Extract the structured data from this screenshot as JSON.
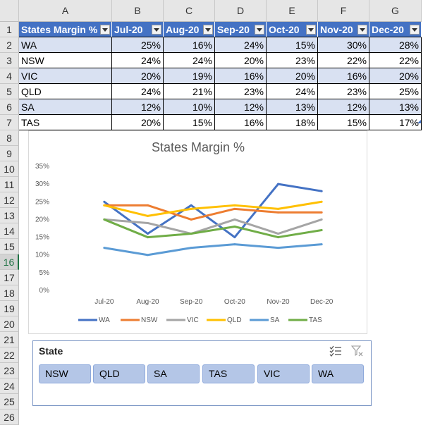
{
  "columns": [
    "A",
    "B",
    "C",
    "D",
    "E",
    "F",
    "G"
  ],
  "rows": [
    "1",
    "2",
    "3",
    "4",
    "5",
    "6",
    "7",
    "8",
    "9",
    "10",
    "11",
    "12",
    "13",
    "14",
    "15",
    "16",
    "17",
    "18",
    "19",
    "20",
    "21",
    "22",
    "23",
    "24",
    "25",
    "26"
  ],
  "table": {
    "headers": [
      "States Margin %",
      "Jul-20",
      "Aug-20",
      "Sep-20",
      "Oct-20",
      "Nov-20",
      "Dec-20"
    ],
    "rows": [
      {
        "state": "WA",
        "values": [
          "25%",
          "16%",
          "24%",
          "15%",
          "30%",
          "28%"
        ]
      },
      {
        "state": "NSW",
        "values": [
          "24%",
          "24%",
          "20%",
          "23%",
          "22%",
          "22%"
        ]
      },
      {
        "state": "VIC",
        "values": [
          "20%",
          "19%",
          "16%",
          "20%",
          "16%",
          "20%"
        ]
      },
      {
        "state": "QLD",
        "values": [
          "24%",
          "21%",
          "23%",
          "24%",
          "23%",
          "25%"
        ]
      },
      {
        "state": "SA",
        "values": [
          "12%",
          "10%",
          "12%",
          "13%",
          "12%",
          "13%"
        ]
      },
      {
        "state": "TAS",
        "values": [
          "20%",
          "15%",
          "16%",
          "18%",
          "15%",
          "17%"
        ]
      }
    ]
  },
  "chart_data": {
    "type": "line",
    "title": "States Margin %",
    "categories": [
      "Jul-20",
      "Aug-20",
      "Sep-20",
      "Oct-20",
      "Nov-20",
      "Dec-20"
    ],
    "y_ticks": [
      "0%",
      "5%",
      "10%",
      "15%",
      "20%",
      "25%",
      "30%",
      "35%"
    ],
    "ylim": [
      0,
      35
    ],
    "grid": false,
    "legend_position": "bottom",
    "series": [
      {
        "name": "WA",
        "color": "#4472c4",
        "values": [
          25,
          16,
          24,
          15,
          30,
          28
        ]
      },
      {
        "name": "NSW",
        "color": "#ed7d31",
        "values": [
          24,
          24,
          20,
          23,
          22,
          22
        ]
      },
      {
        "name": "VIC",
        "color": "#a5a5a5",
        "values": [
          20,
          19,
          16,
          20,
          16,
          20
        ]
      },
      {
        "name": "QLD",
        "color": "#ffc000",
        "values": [
          24,
          21,
          23,
          24,
          23,
          25
        ]
      },
      {
        "name": "SA",
        "color": "#5b9bd5",
        "values": [
          12,
          10,
          12,
          13,
          12,
          13
        ]
      },
      {
        "name": "TAS",
        "color": "#70ad47",
        "values": [
          20,
          15,
          16,
          18,
          15,
          17
        ]
      }
    ]
  },
  "slicer": {
    "title": "State",
    "items": [
      "NSW",
      "QLD",
      "SA",
      "TAS",
      "VIC",
      "WA"
    ],
    "icons": [
      "multi-select-icon",
      "clear-filter-icon"
    ]
  },
  "colors": {
    "header_fill": "#4472c4",
    "band_fill": "#d9e1f2",
    "slicer_item_fill": "#b4c6e7"
  }
}
